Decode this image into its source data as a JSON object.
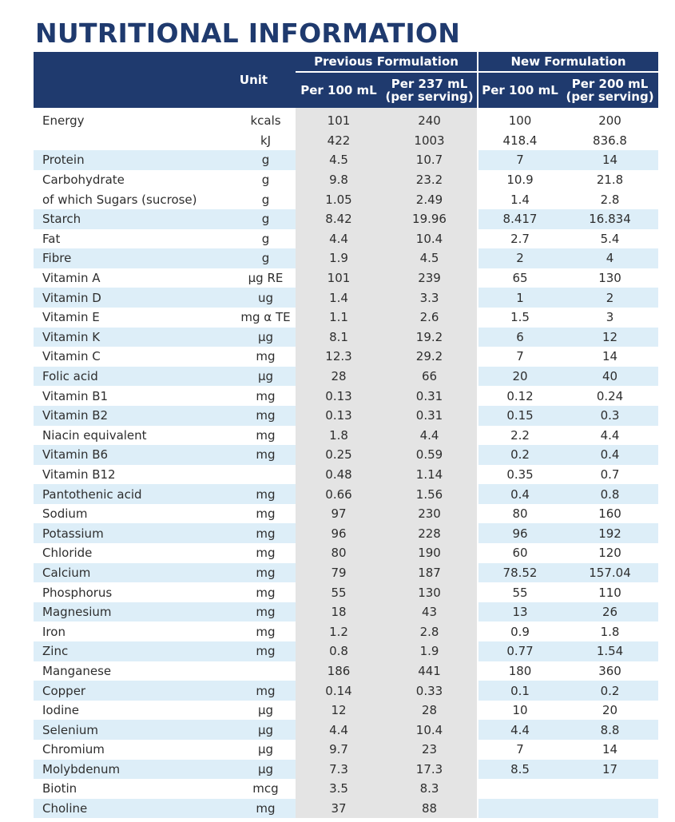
{
  "title": "NUTRITIONAL INFORMATION",
  "header": {
    "unit": "Unit",
    "previous": "Previous Formulation",
    "new": "New Formulation",
    "prev_per100": "Per 100 mL",
    "prev_serving_1": "Per 237 mL",
    "prev_serving_2": "(per serving)",
    "new_per100": "Per 100 mL",
    "new_serving_1": "Per 200 mL",
    "new_serving_2": "(per serving)"
  },
  "colors": {
    "navy": "#1f3a6e",
    "grey_band": "#e4e4e4",
    "blue_band": "#ddeef8"
  },
  "rows": [
    {
      "name": "Energy",
      "unit": "kcals",
      "p1": "101",
      "p2": "240",
      "n1": "100",
      "n2": "200",
      "band": false
    },
    {
      "name": "",
      "unit": "kJ",
      "p1": "422",
      "p2": "1003",
      "n1": "418.4",
      "n2": "836.8",
      "band": false
    },
    {
      "name": "Protein",
      "unit": "g",
      "p1": "4.5",
      "p2": "10.7",
      "n1": "7",
      "n2": "14",
      "band": true
    },
    {
      "name": "Carbohydrate",
      "unit": "g",
      "p1": "9.8",
      "p2": "23.2",
      "n1": "10.9",
      "n2": "21.8",
      "band": false
    },
    {
      "name": "of which Sugars (sucrose)",
      "unit": "g",
      "p1": "1.05",
      "p2": "2.49",
      "n1": "1.4",
      "n2": "2.8",
      "band": false
    },
    {
      "name": "Starch",
      "unit": "g",
      "p1": "8.42",
      "p2": "19.96",
      "n1": "8.417",
      "n2": "16.834",
      "band": true
    },
    {
      "name": "Fat",
      "unit": "g",
      "p1": "4.4",
      "p2": "10.4",
      "n1": "2.7",
      "n2": "5.4",
      "band": false
    },
    {
      "name": "Fibre",
      "unit": "g",
      "p1": "1.9",
      "p2": "4.5",
      "n1": "2",
      "n2": "4",
      "band": true
    },
    {
      "name": "Vitamin A",
      "unit": "µg RE",
      "p1": "101",
      "p2": "239",
      "n1": "65",
      "n2": "130",
      "band": false
    },
    {
      "name": "Vitamin D",
      "unit": "ug",
      "p1": "1.4",
      "p2": "3.3",
      "n1": "1",
      "n2": "2",
      "band": true
    },
    {
      "name": "Vitamin E",
      "unit": "mg α TE",
      "p1": "1.1",
      "p2": "2.6",
      "n1": "1.5",
      "n2": "3",
      "band": false
    },
    {
      "name": "Vitamin K",
      "unit": "µg",
      "p1": "8.1",
      "p2": "19.2",
      "n1": "6",
      "n2": "12",
      "band": true
    },
    {
      "name": "Vitamin C",
      "unit": "mg",
      "p1": "12.3",
      "p2": "29.2",
      "n1": "7",
      "n2": "14",
      "band": false
    },
    {
      "name": "Folic acid",
      "unit": "µg",
      "p1": "28",
      "p2": "66",
      "n1": "20",
      "n2": "40",
      "band": true
    },
    {
      "name": "Vitamin B1",
      "unit": "mg",
      "p1": "0.13",
      "p2": "0.31",
      "n1": "0.12",
      "n2": "0.24",
      "band": false
    },
    {
      "name": "Vitamin B2",
      "unit": "mg",
      "p1": "0.13",
      "p2": "0.31",
      "n1": "0.15",
      "n2": "0.3",
      "band": true
    },
    {
      "name": "Niacin equivalent",
      "unit": "mg",
      "p1": "1.8",
      "p2": "4.4",
      "n1": "2.2",
      "n2": "4.4",
      "band": false
    },
    {
      "name": "Vitamin B6",
      "unit": "mg",
      "p1": "0.25",
      "p2": "0.59",
      "n1": "0.2",
      "n2": "0.4",
      "band": true
    },
    {
      "name": "Vitamin B12",
      "unit": "",
      "p1": "0.48",
      "p2": "1.14",
      "n1": "0.35",
      "n2": "0.7",
      "band": false
    },
    {
      "name": "Pantothenic acid",
      "unit": "mg",
      "p1": "0.66",
      "p2": "1.56",
      "n1": "0.4",
      "n2": "0.8",
      "band": true
    },
    {
      "name": "Sodium",
      "unit": "mg",
      "p1": "97",
      "p2": "230",
      "n1": "80",
      "n2": "160",
      "band": false
    },
    {
      "name": "Potassium",
      "unit": "mg",
      "p1": "96",
      "p2": "228",
      "n1": "96",
      "n2": "192",
      "band": true
    },
    {
      "name": "Chloride",
      "unit": "mg",
      "p1": "80",
      "p2": "190",
      "n1": "60",
      "n2": "120",
      "band": false
    },
    {
      "name": "Calcium",
      "unit": "mg",
      "p1": "79",
      "p2": "187",
      "n1": "78.52",
      "n2": "157.04",
      "band": true
    },
    {
      "name": "Phosphorus",
      "unit": "mg",
      "p1": "55",
      "p2": "130",
      "n1": "55",
      "n2": "110",
      "band": false
    },
    {
      "name": "Magnesium",
      "unit": "mg",
      "p1": "18",
      "p2": "43",
      "n1": "13",
      "n2": "26",
      "band": true
    },
    {
      "name": "Iron",
      "unit": "mg",
      "p1": "1.2",
      "p2": "2.8",
      "n1": "0.9",
      "n2": "1.8",
      "band": false
    },
    {
      "name": "Zinc",
      "unit": "mg",
      "p1": "0.8",
      "p2": "1.9",
      "n1": "0.77",
      "n2": "1.54",
      "band": true
    },
    {
      "name": "Manganese",
      "unit": "",
      "p1": "186",
      "p2": "441",
      "n1": "180",
      "n2": "360",
      "band": false
    },
    {
      "name": "Copper",
      "unit": "mg",
      "p1": "0.14",
      "p2": "0.33",
      "n1": "0.1",
      "n2": "0.2",
      "band": true
    },
    {
      "name": "Iodine",
      "unit": "µg",
      "p1": "12",
      "p2": "28",
      "n1": "10",
      "n2": "20",
      "band": false
    },
    {
      "name": "Selenium",
      "unit": "µg",
      "p1": "4.4",
      "p2": "10.4",
      "n1": "4.4",
      "n2": "8.8",
      "band": true
    },
    {
      "name": "Chromium",
      "unit": "µg",
      "p1": "9.7",
      "p2": "23",
      "n1": "7",
      "n2": "14",
      "band": false
    },
    {
      "name": "Molybdenum",
      "unit": "µg",
      "p1": "7.3",
      "p2": "17.3",
      "n1": "8.5",
      "n2": "17",
      "band": true
    },
    {
      "name": "Biotin",
      "unit": "mcg",
      "p1": "3.5",
      "p2": "8.3",
      "n1": "",
      "n2": "",
      "band": false
    },
    {
      "name": "Choline",
      "unit": "mg",
      "p1": "37",
      "p2": "88",
      "n1": "",
      "n2": "",
      "band": true
    }
  ]
}
